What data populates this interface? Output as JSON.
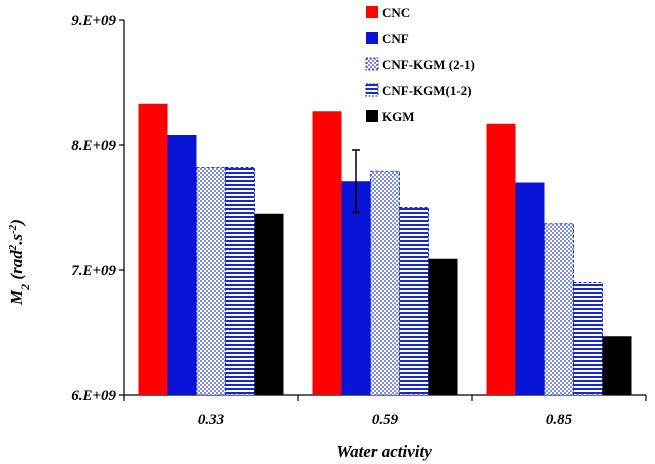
{
  "chart_data": {
    "type": "bar",
    "xlabel": "Water activity",
    "ylabel": {
      "main": "M",
      "sub": "2",
      "unit_open": " (rad",
      "unit_sup1": "2",
      "unit_mid": ".s",
      "unit_sup2": "-2",
      "unit_close": ")"
    },
    "categories": [
      "0.33",
      "0.59",
      "0.85"
    ],
    "ylim": [
      6000000000,
      9000000000
    ],
    "yticks": [
      6000000000,
      7000000000,
      8000000000,
      9000000000
    ],
    "ytick_labels": [
      "6.E+09",
      "7.E+09",
      "8.E+09",
      "9.E+09"
    ],
    "grid": false,
    "legend_position": "top-right",
    "series": [
      {
        "name": "CNC",
        "values": [
          8330000000,
          8270000000,
          8170000000
        ],
        "color": "#ff0000",
        "pattern": "solid"
      },
      {
        "name": "CNF",
        "values": [
          8080000000,
          7710000000,
          7700000000
        ],
        "color": "#0a14d6",
        "pattern": "solid"
      },
      {
        "name": "CNF-KGM (2-1)",
        "values": [
          7820000000,
          7790000000,
          7370000000
        ],
        "color": "#2a3fd8",
        "pattern": "dotted"
      },
      {
        "name": "CNF-KGM(1-2)",
        "values": [
          7820000000,
          7500000000,
          6900000000
        ],
        "color": "#1528d4",
        "pattern": "horizontal-lines"
      },
      {
        "name": "KGM",
        "values": [
          7450000000,
          7090000000,
          6470000000
        ],
        "color": "#000000",
        "pattern": "solid"
      }
    ],
    "error_bars": [
      {
        "series": "CNF",
        "category": "0.59",
        "low": 7460000000,
        "high": 7960000000
      }
    ]
  }
}
